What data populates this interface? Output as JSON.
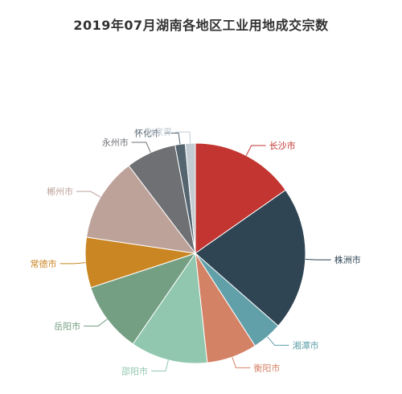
{
  "chart_data": {
    "type": "pie",
    "title": "2019年07月湖南各地区工业用地成交宗数",
    "slices": [
      {
        "label": "长沙市",
        "value": 15.5,
        "color": "#c23531"
      },
      {
        "label": "株洲市",
        "value": 21.5,
        "color": "#2f4554"
      },
      {
        "label": "湘潭市",
        "value": 4.5,
        "color": "#61a0a8"
      },
      {
        "label": "衡阳市",
        "value": 7.5,
        "color": "#d48265"
      },
      {
        "label": "邵阳市",
        "value": 11.5,
        "color": "#91c7ae"
      },
      {
        "label": "岳阳市",
        "value": 10.5,
        "color": "#749f83"
      },
      {
        "label": "常德市",
        "value": 7.5,
        "color": "#ca8622"
      },
      {
        "label": "郴州市",
        "value": 12.5,
        "color": "#bda29a"
      },
      {
        "label": "永州市",
        "value": 7.5,
        "color": "#6e7074"
      },
      {
        "label": "怀化市",
        "value": 1.5,
        "color": "#546570"
      },
      {
        "label": "张家界",
        "value": 1.5,
        "color": "#c4ccd3"
      }
    ]
  }
}
